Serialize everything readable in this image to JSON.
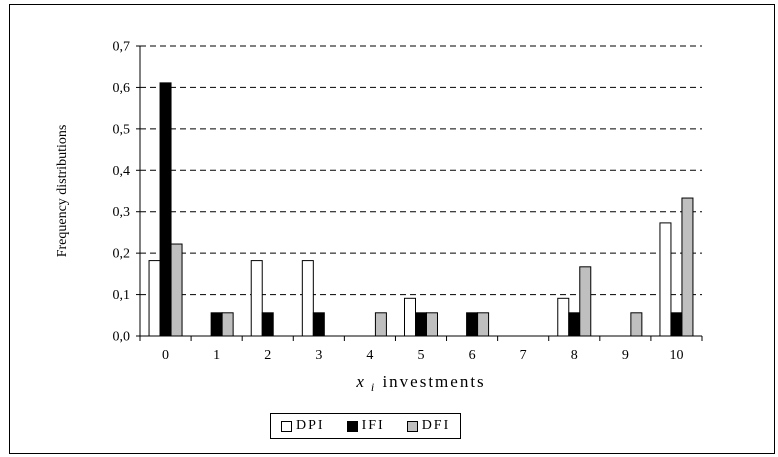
{
  "chart_data": {
    "type": "bar",
    "title": "",
    "xlabel": "investments",
    "xlabel_symbol": "x",
    "xlabel_subscript": "i",
    "ylabel": "Frequency distributions",
    "ylim": [
      0,
      0.7
    ],
    "yticks": [
      "0,0",
      "0,1",
      "0,2",
      "0,3",
      "0,4",
      "0,5",
      "0,6",
      "0,7"
    ],
    "ytick_values": [
      0,
      0.1,
      0.2,
      0.3,
      0.4,
      0.5,
      0.6,
      0.7
    ],
    "categories": [
      "0",
      "1",
      "2",
      "3",
      "4",
      "5",
      "6",
      "7",
      "8",
      "9",
      "10"
    ],
    "grid": "horizontal dashed",
    "legend_position": "bottom-center",
    "series": [
      {
        "name": "DPI",
        "color": "#ffffff",
        "values": [
          0.182,
          0,
          0.182,
          0.182,
          0,
          0.091,
          0,
          0,
          0.091,
          0,
          0.273
        ]
      },
      {
        "name": "IFI",
        "color": "#000000",
        "values": [
          0.611,
          0.056,
          0.056,
          0.056,
          0,
          0.056,
          0.056,
          0,
          0.056,
          0,
          0.056
        ]
      },
      {
        "name": "DFI",
        "color": "#bfbfbf",
        "values": [
          0.222,
          0.056,
          0,
          0,
          0.056,
          0.056,
          0.056,
          0,
          0.167,
          0.056,
          0.333
        ]
      }
    ]
  }
}
